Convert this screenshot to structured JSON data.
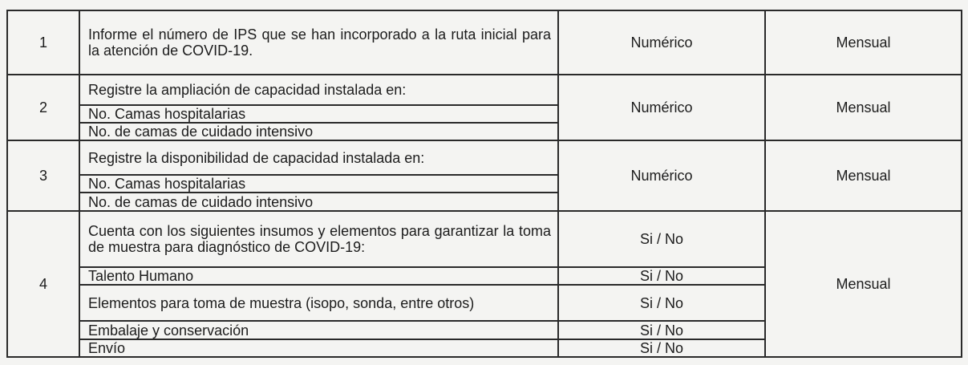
{
  "rows": [
    {
      "number": "1",
      "items": [
        "Informe el número de IPS que se han incorporado a la ruta inicial para la atención de COVID-19."
      ],
      "type": "Numérico",
      "frequency": "Mensual"
    },
    {
      "number": "2",
      "items": [
        "Registre la ampliación de capacidad instalada en:",
        "No. Camas hospitalarias",
        "No. de camas de cuidado intensivo"
      ],
      "type": "Numérico",
      "frequency": "Mensual"
    },
    {
      "number": "3",
      "items": [
        "Registre la disponibilidad de capacidad instalada en:",
        "No. Camas hospitalarias",
        "No. de camas de cuidado intensivo"
      ],
      "type": "Numérico",
      "frequency": "Mensual"
    },
    {
      "number": "4",
      "items": [
        "Cuenta con los siguientes insumos y elementos para garantizar la toma de muestra para diagnóstico de COVID-19:",
        "Talento Humano",
        "Elementos para toma de muestra (isopo, sonda, entre otros)",
        "Embalaje y conservación",
        "Envío"
      ],
      "types": [
        "Si / No",
        "Si / No",
        "Si / No",
        "Si / No",
        "Si / No"
      ],
      "frequency": "Mensual"
    }
  ]
}
